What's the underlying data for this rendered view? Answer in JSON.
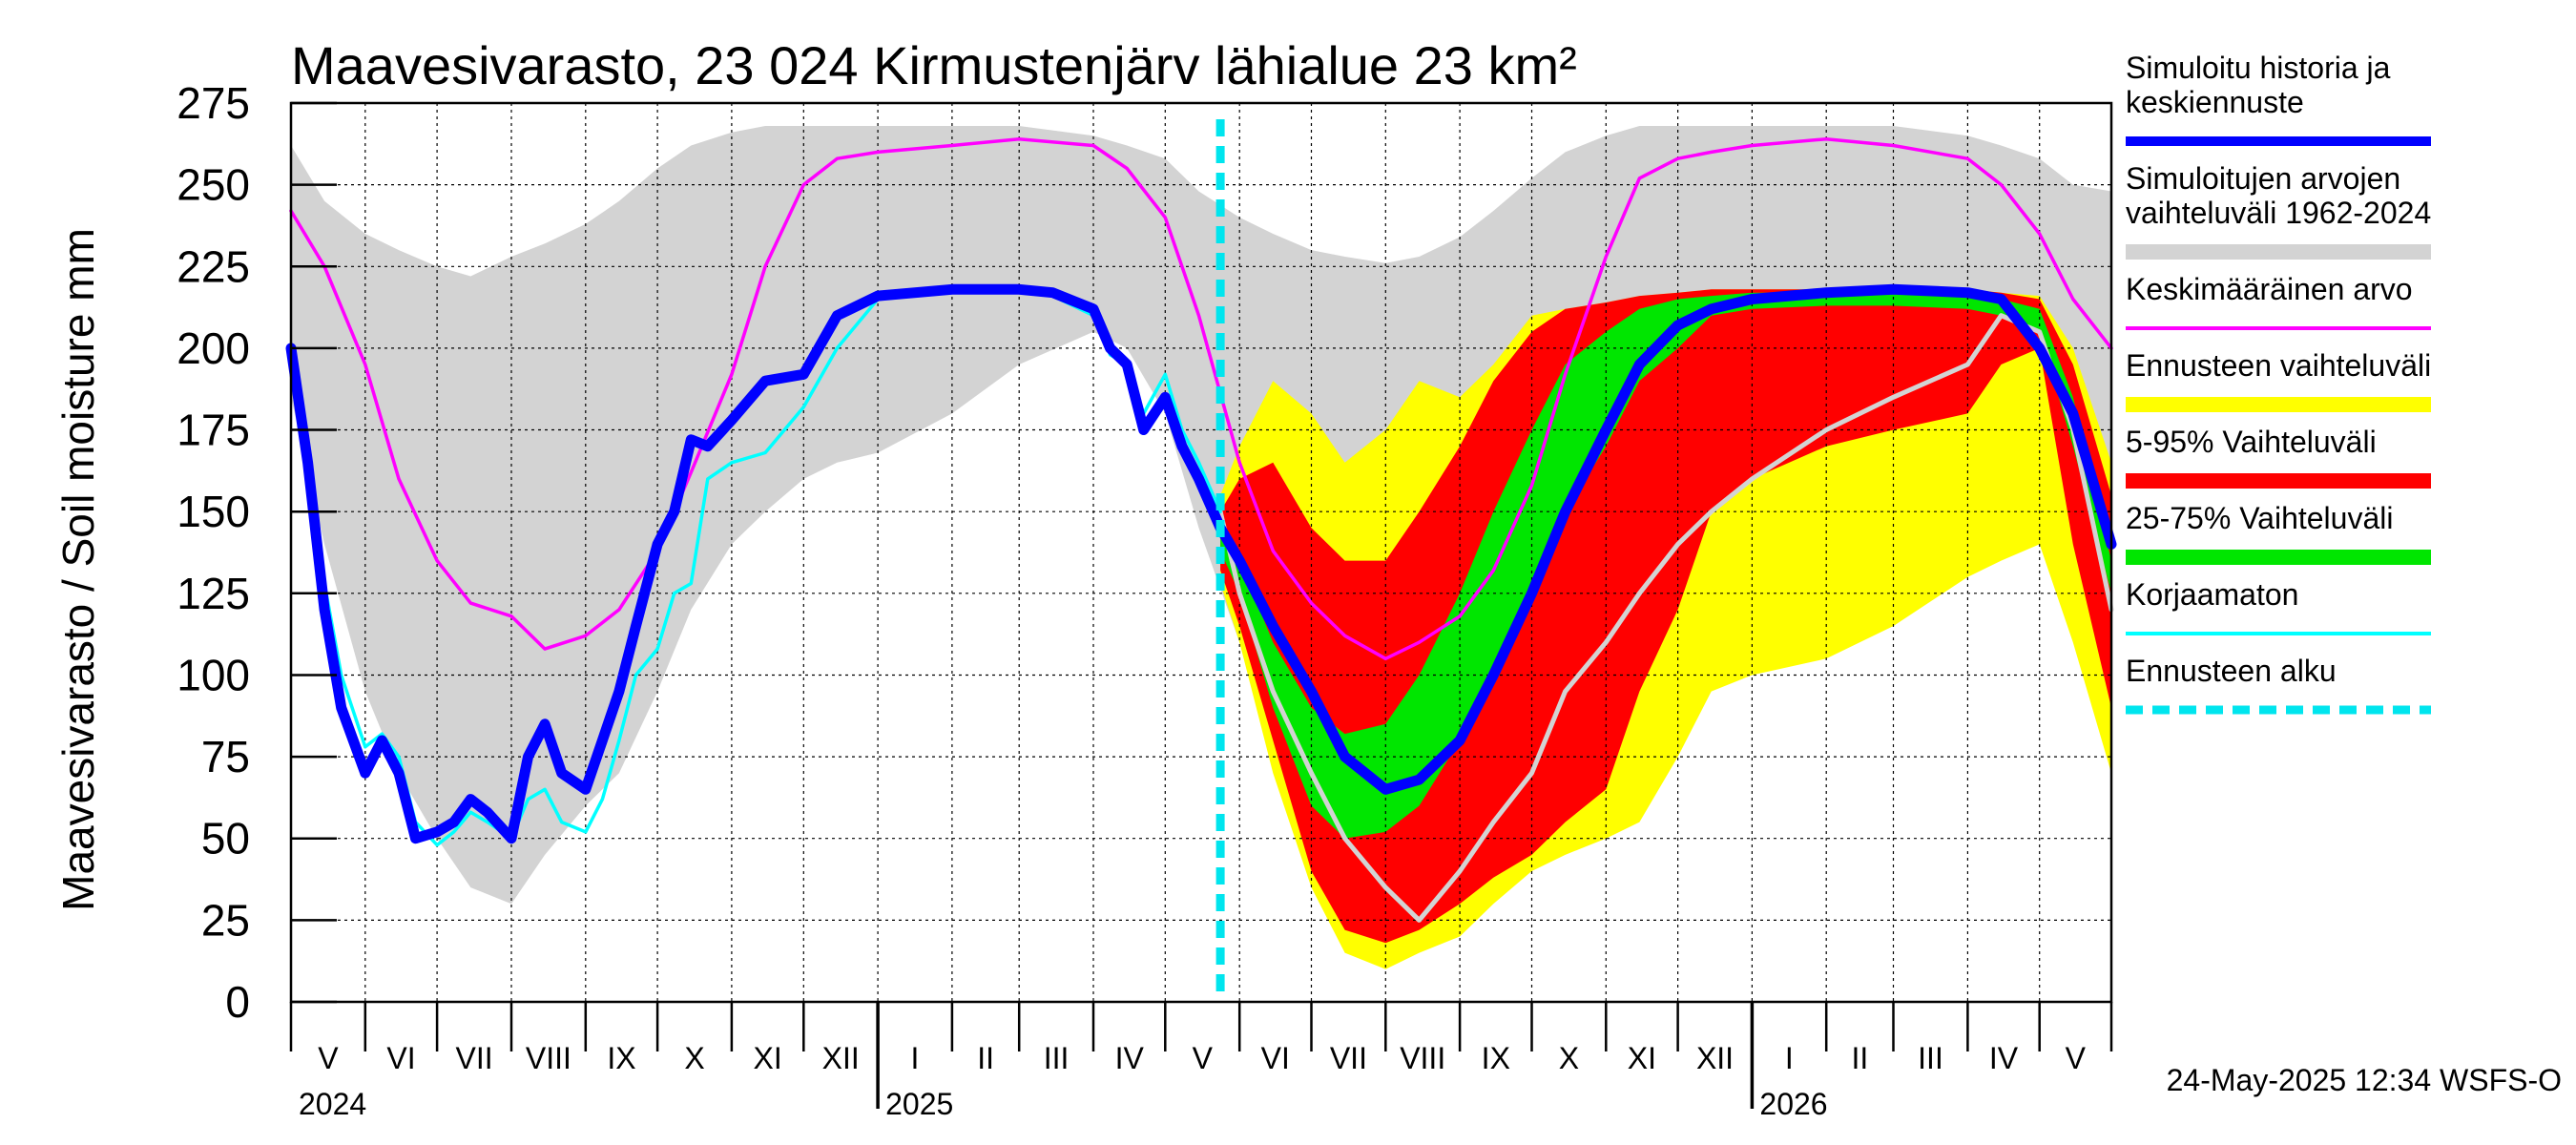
{
  "chart_data": {
    "type": "area",
    "title": "Maavesivarasto, 23 024 Kirmustenjärv lähialue 23 km²",
    "ylabel": "Maavesivarasto / Soil moisture   mm",
    "ylim": [
      0,
      275
    ],
    "yticks": [
      "0",
      "25",
      "50",
      "75",
      "100",
      "125",
      "150",
      "175",
      "200",
      "225",
      "250",
      "275"
    ],
    "xlim": [
      "2024-05-01",
      "2026-05-31"
    ],
    "months": [
      "V",
      "VI",
      "VII",
      "VIII",
      "IX",
      "X",
      "XI",
      "XII",
      "I",
      "II",
      "III",
      "IV",
      "V",
      "VI",
      "VII",
      "VIII",
      "IX",
      "X",
      "XI",
      "XII",
      "I",
      "II",
      "III",
      "IV",
      "V"
    ],
    "years": [
      "2024",
      "2025",
      "2026"
    ],
    "grid": true,
    "legend_position": "right",
    "forecast_start": "2025-05-24",
    "footer": "24-May-2025 12:34 WSFS-O",
    "colors": {
      "history": "#0000ff",
      "range_hist": "#d3d3d3",
      "mean": "#ff00ff",
      "range_fc": "#ffff00",
      "p5_95": "#ff0000",
      "p25_75": "#00e600",
      "uncorrected": "#00ffff",
      "forecast_start": "#00e5ee"
    },
    "legend": [
      {
        "label": "Simuloitu historia ja keskiennuste",
        "lines": [
          "Simuloitu historia ja",
          "keskiennuste"
        ],
        "color": "#0000ff",
        "style": "line"
      },
      {
        "label": "Simuloitujen arvojen vaihteluväli 1962-2024",
        "lines": [
          "Simuloitujen arvojen",
          "vaihteluväli 1962-2024"
        ],
        "color": "#d3d3d3",
        "style": "band"
      },
      {
        "label": "Keskimääräinen arvo",
        "lines": [
          "Keskimääräinen arvo"
        ],
        "color": "#ff00ff",
        "style": "thin"
      },
      {
        "label": "Ennusteen vaihteluväli",
        "lines": [
          "Ennusteen vaihteluväli"
        ],
        "color": "#ffff00",
        "style": "band"
      },
      {
        "label": "5-95% Vaihteluväli",
        "lines": [
          "5-95% Vaihteluväli"
        ],
        "color": "#ff0000",
        "style": "band"
      },
      {
        "label": "25-75% Vaihteluväli",
        "lines": [
          "25-75% Vaihteluväli"
        ],
        "color": "#00e600",
        "style": "band"
      },
      {
        "label": "Korjaamaton",
        "lines": [
          "Korjaamaton"
        ],
        "color": "#00ffff",
        "style": "thin"
      },
      {
        "label": "Ennusteen alku",
        "lines": [
          "Ennusteen alku"
        ],
        "color": "#00e5ee",
        "style": "dashed"
      }
    ],
    "series": {
      "hist_range": {
        "name": "Simuloitujen arvojen vaihteluväli 1962-2024",
        "x": [
          "2024-05-01",
          "2024-05-15",
          "2024-06-01",
          "2024-06-15",
          "2024-07-01",
          "2024-07-15",
          "2024-08-01",
          "2024-08-15",
          "2024-09-01",
          "2024-09-15",
          "2024-10-01",
          "2024-10-15",
          "2024-11-01",
          "2024-11-15",
          "2024-12-01",
          "2024-12-15",
          "2025-01-01",
          "2025-02-01",
          "2025-03-01",
          "2025-04-01",
          "2025-04-15",
          "2025-05-01",
          "2025-05-15",
          "2025-06-01",
          "2025-06-15",
          "2025-07-01",
          "2025-07-15",
          "2025-08-01",
          "2025-08-15",
          "2025-09-01",
          "2025-09-15",
          "2025-10-01",
          "2025-10-15",
          "2025-11-01",
          "2025-11-15",
          "2025-12-01",
          "2025-12-15",
          "2026-01-01",
          "2026-02-01",
          "2026-03-01",
          "2026-04-01",
          "2026-04-15",
          "2026-05-01",
          "2026-05-15",
          "2026-05-31"
        ],
        "high": [
          262,
          245,
          235,
          230,
          225,
          222,
          228,
          232,
          238,
          245,
          255,
          262,
          266,
          268,
          268,
          268,
          268,
          268,
          268,
          265,
          262,
          258,
          248,
          240,
          235,
          230,
          228,
          226,
          228,
          234,
          242,
          252,
          260,
          265,
          268,
          268,
          268,
          268,
          268,
          268,
          265,
          262,
          258,
          250,
          248
        ],
        "low": [
          185,
          140,
          95,
          70,
          50,
          35,
          30,
          45,
          60,
          70,
          95,
          120,
          140,
          150,
          160,
          165,
          168,
          180,
          195,
          205,
          200,
          180,
          145,
          110,
          75,
          50,
          38,
          30,
          42,
          60,
          78,
          100,
          120,
          140,
          150,
          160,
          165,
          168,
          180,
          195,
          205,
          200,
          180,
          150,
          130
        ]
      },
      "mean": {
        "name": "Keskimääräinen arvo",
        "x": [
          "2024-05-01",
          "2024-05-15",
          "2024-06-01",
          "2024-06-15",
          "2024-07-01",
          "2024-07-15",
          "2024-08-01",
          "2024-08-15",
          "2024-09-01",
          "2024-09-15",
          "2024-10-01",
          "2024-10-15",
          "2024-11-01",
          "2024-11-15",
          "2024-12-01",
          "2024-12-15",
          "2025-01-01",
          "2025-02-01",
          "2025-03-01",
          "2025-04-01",
          "2025-04-15",
          "2025-05-01",
          "2025-05-15",
          "2025-06-01",
          "2025-06-15",
          "2025-07-01",
          "2025-07-15",
          "2025-08-01",
          "2025-08-15",
          "2025-09-01",
          "2025-09-15",
          "2025-10-01",
          "2025-10-15",
          "2025-11-01",
          "2025-11-15",
          "2025-12-01",
          "2025-12-15",
          "2026-01-01",
          "2026-02-01",
          "2026-03-01",
          "2026-04-01",
          "2026-04-15",
          "2026-05-01",
          "2026-05-15",
          "2026-05-31"
        ],
        "values": [
          242,
          225,
          195,
          160,
          135,
          122,
          118,
          108,
          112,
          120,
          138,
          162,
          192,
          225,
          250,
          258,
          260,
          262,
          264,
          262,
          255,
          240,
          210,
          165,
          138,
          122,
          112,
          105,
          110,
          118,
          132,
          158,
          192,
          228,
          252,
          258,
          260,
          262,
          264,
          262,
          258,
          250,
          235,
          215,
          200
        ]
      },
      "forecast_yellow": {
        "name": "Ennusteen vaihteluväli",
        "x": [
          "2025-05-24",
          "2025-06-01",
          "2025-06-15",
          "2025-07-01",
          "2025-07-15",
          "2025-08-01",
          "2025-08-15",
          "2025-09-01",
          "2025-09-15",
          "2025-10-01",
          "2025-10-15",
          "2025-11-01",
          "2025-11-15",
          "2025-12-01",
          "2025-12-15",
          "2026-01-01",
          "2026-02-01",
          "2026-03-01",
          "2026-04-01",
          "2026-04-15",
          "2026-05-01",
          "2026-05-15",
          "2026-05-31"
        ],
        "high": [
          155,
          170,
          190,
          180,
          165,
          175,
          190,
          185,
          195,
          210,
          212,
          214,
          216,
          217,
          218,
          218,
          218,
          218,
          218,
          217,
          216,
          200,
          165
        ],
        "low": [
          128,
          110,
          70,
          35,
          15,
          10,
          15,
          20,
          30,
          40,
          45,
          50,
          55,
          75,
          95,
          100,
          105,
          115,
          130,
          135,
          140,
          110,
          70
        ]
      },
      "forecast_red": {
        "name": "5-95% Vaihteluväli",
        "x": [
          "2025-05-24",
          "2025-06-01",
          "2025-06-15",
          "2025-07-01",
          "2025-07-15",
          "2025-08-01",
          "2025-08-15",
          "2025-09-01",
          "2025-09-15",
          "2025-10-01",
          "2025-10-15",
          "2025-11-01",
          "2025-11-15",
          "2025-12-01",
          "2025-12-15",
          "2026-01-01",
          "2026-02-01",
          "2026-03-01",
          "2026-04-01",
          "2026-04-15",
          "2026-05-01",
          "2026-05-15",
          "2026-05-31"
        ],
        "high": [
          150,
          160,
          165,
          145,
          135,
          135,
          150,
          170,
          190,
          205,
          212,
          214,
          216,
          217,
          218,
          218,
          218,
          218,
          218,
          217,
          215,
          195,
          155
        ],
        "low": [
          132,
          115,
          80,
          40,
          22,
          18,
          22,
          30,
          38,
          45,
          55,
          65,
          95,
          120,
          150,
          160,
          170,
          175,
          180,
          195,
          200,
          140,
          90
        ]
      },
      "forecast_green": {
        "name": "25-75% Vaihteluväli",
        "x": [
          "2025-05-24",
          "2025-06-01",
          "2025-06-15",
          "2025-07-01",
          "2025-07-15",
          "2025-08-01",
          "2025-08-15",
          "2025-09-01",
          "2025-09-15",
          "2025-10-01",
          "2025-10-15",
          "2025-11-01",
          "2025-11-15",
          "2025-12-01",
          "2025-12-15",
          "2026-01-01",
          "2026-02-01",
          "2026-03-01",
          "2026-04-01",
          "2026-04-15",
          "2026-05-01",
          "2026-05-15",
          "2026-05-31"
        ],
        "high": [
          145,
          135,
          110,
          90,
          82,
          85,
          100,
          125,
          150,
          175,
          195,
          205,
          212,
          215,
          216,
          217,
          217,
          217,
          216,
          215,
          212,
          185,
          135
        ],
        "low": [
          138,
          125,
          90,
          60,
          50,
          52,
          60,
          80,
          100,
          125,
          150,
          170,
          190,
          200,
          210,
          212,
          213,
          213,
          212,
          210,
          205,
          170,
          125
        ]
      },
      "history": {
        "name": "Simuloitu historia ja keskiennuste",
        "x": [
          "2024-05-01",
          "2024-05-08",
          "2024-05-15",
          "2024-05-22",
          "2024-06-01",
          "2024-06-08",
          "2024-06-15",
          "2024-06-22",
          "2024-07-01",
          "2024-07-08",
          "2024-07-15",
          "2024-07-22",
          "2024-08-01",
          "2024-08-08",
          "2024-08-15",
          "2024-08-22",
          "2024-09-01",
          "2024-09-08",
          "2024-09-15",
          "2024-09-22",
          "2024-10-01",
          "2024-10-08",
          "2024-10-15",
          "2024-10-22",
          "2024-11-01",
          "2024-11-15",
          "2024-12-01",
          "2024-12-15",
          "2025-01-01",
          "2025-02-01",
          "2025-03-01",
          "2025-03-15",
          "2025-04-01",
          "2025-04-08",
          "2025-04-15",
          "2025-04-22",
          "2025-05-01",
          "2025-05-08",
          "2025-05-15",
          "2025-05-24",
          "2025-06-01",
          "2025-06-15",
          "2025-07-01",
          "2025-07-15",
          "2025-08-01",
          "2025-08-15",
          "2025-09-01",
          "2025-09-15",
          "2025-10-01",
          "2025-10-15",
          "2025-11-01",
          "2025-11-15",
          "2025-12-01",
          "2025-12-15",
          "2026-01-01",
          "2026-02-01",
          "2026-03-01",
          "2026-04-01",
          "2026-04-15",
          "2026-05-01",
          "2026-05-15",
          "2026-05-31"
        ],
        "values": [
          200,
          165,
          120,
          90,
          70,
          80,
          70,
          50,
          52,
          55,
          62,
          58,
          50,
          75,
          85,
          70,
          65,
          80,
          95,
          115,
          140,
          150,
          172,
          170,
          178,
          190,
          192,
          210,
          216,
          218,
          218,
          217,
          212,
          200,
          195,
          175,
          185,
          170,
          160,
          145,
          135,
          115,
          95,
          75,
          65,
          68,
          80,
          100,
          125,
          150,
          175,
          195,
          207,
          212,
          215,
          217,
          218,
          217,
          215,
          200,
          180,
          140
        ]
      },
      "uncorrected": {
        "name": "Korjaamaton",
        "x": [
          "2024-05-01",
          "2024-05-08",
          "2024-05-15",
          "2024-05-22",
          "2024-06-01",
          "2024-06-08",
          "2024-06-15",
          "2024-06-22",
          "2024-07-01",
          "2024-07-08",
          "2024-07-15",
          "2024-07-22",
          "2024-08-01",
          "2024-08-08",
          "2024-08-15",
          "2024-08-22",
          "2024-09-01",
          "2024-09-08",
          "2024-09-15",
          "2024-09-22",
          "2024-10-01",
          "2024-10-08",
          "2024-10-15",
          "2024-10-22",
          "2024-11-01",
          "2024-11-15",
          "2024-12-01",
          "2024-12-15",
          "2025-01-01",
          "2025-02-01",
          "2025-03-01",
          "2025-03-15",
          "2025-04-01",
          "2025-04-08",
          "2025-04-15",
          "2025-04-22",
          "2025-05-01",
          "2025-05-08",
          "2025-05-15",
          "2025-05-24"
        ],
        "values": [
          200,
          170,
          128,
          100,
          78,
          82,
          75,
          55,
          48,
          52,
          58,
          55,
          50,
          62,
          65,
          55,
          52,
          62,
          80,
          100,
          108,
          125,
          128,
          160,
          165,
          168,
          182,
          200,
          215,
          217,
          217,
          216,
          210,
          198,
          195,
          180,
          192,
          175,
          165,
          150
        ]
      },
      "gray_member": {
        "name": "",
        "x": [
          "2025-05-24",
          "2025-06-01",
          "2025-06-15",
          "2025-07-01",
          "2025-07-15",
          "2025-08-01",
          "2025-08-15",
          "2025-09-01",
          "2025-09-15",
          "2025-10-01",
          "2025-10-15",
          "2025-11-01",
          "2025-11-15",
          "2025-12-01",
          "2025-12-15",
          "2026-01-01",
          "2026-02-01",
          "2026-03-01",
          "2026-04-01",
          "2026-04-15",
          "2026-05-01",
          "2026-05-15",
          "2026-05-31"
        ],
        "values": [
          150,
          125,
          95,
          70,
          50,
          35,
          25,
          40,
          55,
          70,
          95,
          110,
          125,
          140,
          150,
          160,
          175,
          185,
          195,
          210,
          205,
          175,
          120
        ]
      }
    }
  }
}
